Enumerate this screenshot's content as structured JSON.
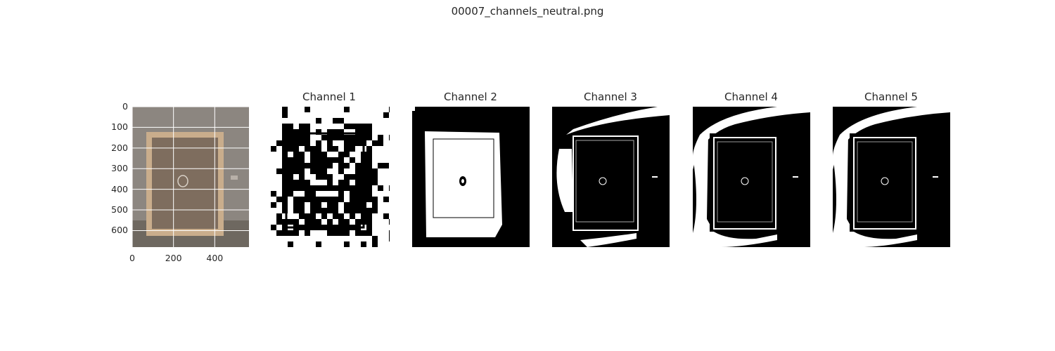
{
  "figure": {
    "suptitle": "00007_channels_neutral.png"
  },
  "chart_data": [
    {
      "type": "image",
      "title": "",
      "xlabel": "",
      "ylabel": "",
      "xlim": [
        0,
        566
      ],
      "ylim": [
        680,
        0
      ],
      "x_ticks": [
        0,
        200,
        400
      ],
      "y_ticks": [
        0,
        100,
        200,
        300,
        400,
        500,
        600
      ],
      "grid": true
    },
    {
      "type": "image",
      "title": "Channel 1",
      "grid": false
    },
    {
      "type": "image",
      "title": "Channel 2",
      "grid": false
    },
    {
      "type": "image",
      "title": "Channel 3",
      "grid": false
    },
    {
      "type": "image",
      "title": "Channel 4",
      "grid": false
    },
    {
      "type": "image",
      "title": "Channel 5",
      "grid": false
    }
  ],
  "colors": {
    "wall": "#8c8680",
    "frame": "#c9ad8c",
    "painting": "#7e6d5e",
    "floor": "#6e6860",
    "grid": "#ffffff",
    "mask_fg": "#ffffff",
    "mask_bg": "#000000"
  }
}
